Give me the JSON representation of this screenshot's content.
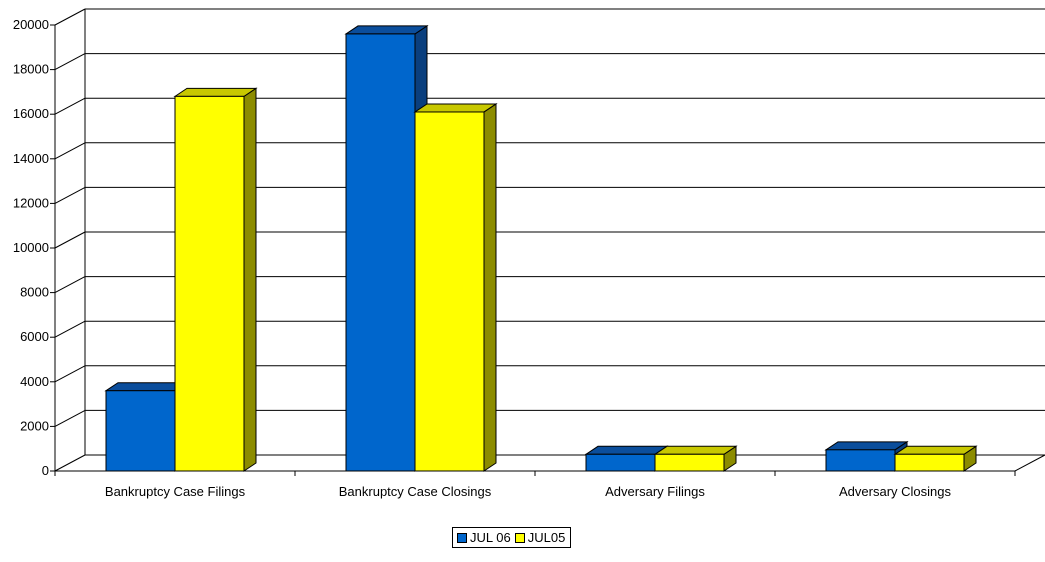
{
  "chart_data": {
    "type": "bar",
    "title": "",
    "xlabel": "",
    "ylabel": "",
    "ylim": [
      0,
      20000
    ],
    "yticks": [
      0,
      2000,
      4000,
      6000,
      8000,
      10000,
      12000,
      14000,
      16000,
      18000,
      20000
    ],
    "grid": true,
    "legend_position": "bottom",
    "categories": [
      "Bankruptcy Case Filings",
      "Bankruptcy Case Closings",
      "Adversary Filings",
      "Adversary Closings"
    ],
    "series": [
      {
        "name": "JUL 06",
        "values": [
          3600,
          19600,
          750,
          950
        ],
        "color": "#0066cc",
        "top_color": "#0b4e9c",
        "side_color": "#0a3f7e"
      },
      {
        "name": "JUL05",
        "values": [
          16800,
          16100,
          750,
          750
        ],
        "color": "#ffff00",
        "top_color": "#c8c800",
        "side_color": "#8c8c00"
      }
    ]
  }
}
